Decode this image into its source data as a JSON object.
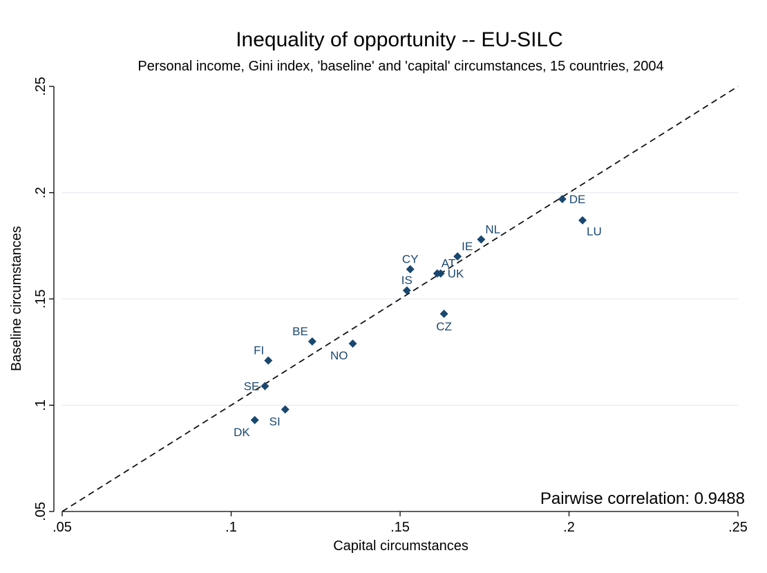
{
  "chart_data": {
    "type": "scatter",
    "title": "Inequality of opportunity -- EU-SILC",
    "subtitle": "Personal income, Gini index, 'baseline' and 'capital' circumstances, 15 countries, 2004",
    "xlabel": "Capital circumstances",
    "ylabel": "Baseline circumstances",
    "xlim": [
      0.05,
      0.25
    ],
    "ylim": [
      0.05,
      0.25
    ],
    "xticks": [
      {
        "value": 0.05,
        "label": ".05"
      },
      {
        "value": 0.1,
        "label": ".1"
      },
      {
        "value": 0.15,
        "label": ".15"
      },
      {
        "value": 0.2,
        "label": ".2"
      },
      {
        "value": 0.25,
        "label": ".25"
      }
    ],
    "yticks": [
      {
        "value": 0.05,
        "label": ".05"
      },
      {
        "value": 0.1,
        "label": ".1"
      },
      {
        "value": 0.15,
        "label": ".15"
      },
      {
        "value": 0.2,
        "label": ".2"
      },
      {
        "value": 0.25,
        "label": ".25"
      }
    ],
    "grid": true,
    "reference_line": "y = x (dashed)",
    "annotation": "Pairwise correlation: 0.9488",
    "marker_color": "#1a476f",
    "label_color": "#1a476f",
    "points": [
      {
        "label": "DE",
        "x": 0.198,
        "y": 0.197,
        "label_pos": "right"
      },
      {
        "label": "LU",
        "x": 0.204,
        "y": 0.187,
        "label_pos": "below-right"
      },
      {
        "label": "NL",
        "x": 0.174,
        "y": 0.178,
        "label_pos": "above-right"
      },
      {
        "label": "IE",
        "x": 0.167,
        "y": 0.17,
        "label_pos": "above-right"
      },
      {
        "label": "AT",
        "x": 0.161,
        "y": 0.162,
        "label_pos": "above-right"
      },
      {
        "label": "UK",
        "x": 0.162,
        "y": 0.162,
        "label_pos": "right"
      },
      {
        "label": "CY",
        "x": 0.153,
        "y": 0.164,
        "label_pos": "above"
      },
      {
        "label": "IS",
        "x": 0.152,
        "y": 0.154,
        "label_pos": "above"
      },
      {
        "label": "CZ",
        "x": 0.163,
        "y": 0.143,
        "label_pos": "below"
      },
      {
        "label": "BE",
        "x": 0.124,
        "y": 0.13,
        "label_pos": "above-left"
      },
      {
        "label": "NO",
        "x": 0.136,
        "y": 0.129,
        "label_pos": "below-left"
      },
      {
        "label": "FI",
        "x": 0.111,
        "y": 0.121,
        "label_pos": "above-left"
      },
      {
        "label": "SE",
        "x": 0.11,
        "y": 0.109,
        "label_pos": "left"
      },
      {
        "label": "SI",
        "x": 0.116,
        "y": 0.098,
        "label_pos": "below-left"
      },
      {
        "label": "DK",
        "x": 0.107,
        "y": 0.093,
        "label_pos": "below-left"
      }
    ]
  }
}
